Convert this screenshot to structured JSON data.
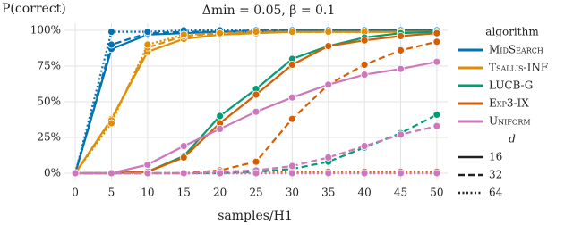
{
  "chart_data": {
    "type": "line",
    "title": "Δmin = 0.05, β = 0.1",
    "ylabel": "P(correct)",
    "xlabel": "samples/H1",
    "x": [
      0,
      5,
      10,
      15,
      20,
      25,
      30,
      35,
      40,
      45,
      50
    ],
    "xlim": [
      -1.5,
      51.5
    ],
    "xticks": [
      0,
      5,
      10,
      15,
      20,
      25,
      30,
      35,
      40,
      45,
      50
    ],
    "ylim": [
      -5,
      105
    ],
    "yticks": [
      {
        "value": 0,
        "label": "0%"
      },
      {
        "value": 25,
        "label": "25%"
      },
      {
        "value": 50,
        "label": "50%"
      },
      {
        "value": 75,
        "label": "75%"
      },
      {
        "value": 100,
        "label": "100%"
      }
    ],
    "grid": true,
    "legend_title": "algorithm",
    "d_title": "d",
    "d_values": [
      16,
      32,
      64
    ],
    "d_dashes": [
      "solid",
      "dashed",
      "dotted"
    ],
    "series": [
      {
        "name": "MidSearch",
        "color": "#0173b2",
        "values": [
          [
            0,
            87,
            97,
            98,
            99,
            99,
            100,
            100,
            100,
            100,
            100
          ],
          [
            0,
            90,
            98,
            99,
            99,
            100,
            100,
            100,
            100,
            100,
            100
          ],
          [
            0,
            99,
            99,
            100,
            100,
            100,
            100,
            100,
            100,
            100,
            100
          ]
        ]
      },
      {
        "name": "Tsallis-INF",
        "color": "#de8f05",
        "values": [
          [
            0,
            38,
            85,
            94,
            97,
            98,
            99,
            99,
            99,
            99,
            99
          ],
          [
            0,
            37,
            88,
            96,
            98,
            99,
            99,
            99,
            99,
            99,
            99
          ],
          [
            0,
            35,
            90,
            97,
            98,
            99,
            99,
            99,
            99,
            99,
            99
          ]
        ]
      },
      {
        "name": "LUCB-G",
        "color": "#029e73",
        "values": [
          [
            0,
            0,
            1,
            12,
            40,
            59,
            80,
            89,
            95,
            98,
            99
          ],
          [
            0,
            0,
            0,
            0,
            0,
            1,
            3,
            8,
            18,
            28,
            41
          ],
          [
            0,
            0,
            0,
            0,
            0,
            0,
            0,
            0,
            0,
            0,
            0
          ]
        ]
      },
      {
        "name": "Exp3-IX",
        "color": "#d55e00",
        "values": [
          [
            0,
            0,
            1,
            11,
            35,
            55,
            76,
            89,
            93,
            96,
            98
          ],
          [
            0,
            0,
            0,
            0,
            2,
            8,
            38,
            62,
            76,
            86,
            92
          ],
          [
            0,
            0,
            0,
            0,
            0,
            0,
            1,
            1,
            1,
            1,
            1
          ]
        ]
      },
      {
        "name": "Uniform",
        "color": "#cc78bc",
        "values": [
          [
            0,
            0,
            6,
            19,
            31,
            43,
            53,
            62,
            69,
            73,
            78
          ],
          [
            0,
            0,
            0,
            0,
            1,
            2,
            5,
            11,
            19,
            27,
            33
          ],
          [
            0,
            0,
            0,
            0,
            0,
            0,
            0,
            0,
            0,
            0,
            0
          ]
        ]
      }
    ]
  }
}
